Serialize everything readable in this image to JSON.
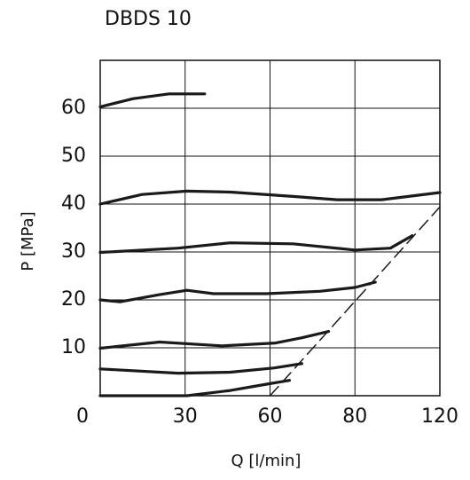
{
  "chart_data": {
    "type": "line",
    "title": "DBDS 10",
    "x_label": "Q [l/min]",
    "y_label": "P [MPa]",
    "xlim": [
      0,
      120
    ],
    "xticks": [
      0,
      30,
      60,
      80,
      120
    ],
    "ylim": [
      0,
      70
    ],
    "yticks": [
      10,
      20,
      30,
      40,
      50,
      60
    ],
    "grid": true,
    "series": [
      {
        "color": "#1a1a1a",
        "x": [
          0,
          11.7,
          24.3,
          36.9
        ],
        "values": [
          60.3,
          62,
          63,
          63
        ]
      },
      {
        "color": "#1a1a1a",
        "x": [
          0,
          14.8,
          30.6,
          46,
          65.4,
          75.8,
          92.5,
          120
        ],
        "values": [
          40,
          42,
          42.7,
          42.5,
          41.6,
          40.9,
          40.9,
          42.4
        ]
      },
      {
        "color": "#1a1a1a",
        "x": [
          0,
          27.5,
          45.9,
          65.4,
          80,
          96.7,
          107
        ],
        "values": [
          29.9,
          30.8,
          31.9,
          31.7,
          30.4,
          30.8,
          33.4
        ]
      },
      {
        "color": "#1a1a1a",
        "x": [
          0,
          7,
          21,
          30.6,
          40,
          58.8,
          71.7,
          80,
          89.6
        ],
        "values": [
          20,
          19.6,
          21.1,
          22,
          21.3,
          21.3,
          21.8,
          22.6,
          23.7
        ]
      },
      {
        "color": "#1a1a1a",
        "x": [
          0,
          21,
          43,
          61.3,
          67.5,
          73.8
        ],
        "values": [
          9.9,
          11.2,
          10.4,
          11,
          12.1,
          13.4
        ]
      },
      {
        "color": "#1a1a1a",
        "x": [
          0,
          27.5,
          46,
          61,
          67.5
        ],
        "values": [
          5.6,
          4.7,
          4.9,
          5.8,
          6.7
        ]
      },
      {
        "color": "#1a1a1a",
        "x": [
          0,
          30.6,
          46,
          58.8,
          64.6
        ],
        "values": [
          0,
          0,
          1.1,
          2.4,
          3.2
        ]
      },
      {
        "color": "#1a1a1a",
        "dashed": true,
        "x": [
          60,
          120
        ],
        "values": [
          0,
          39.4
        ]
      }
    ]
  }
}
